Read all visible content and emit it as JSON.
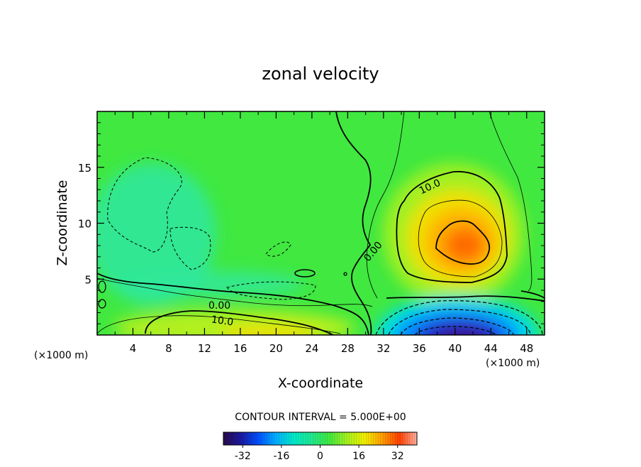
{
  "chart_data": {
    "type": "heatmap",
    "title": "zonal velocity",
    "xlabel": "X-coordinate",
    "ylabel": "Z-coordinate",
    "x_unit": "(×1000 m)",
    "x_unit_right": "(×1000 m)",
    "xlim": [
      0,
      50
    ],
    "ylim": [
      0,
      20
    ],
    "x_ticks": [
      4,
      8,
      12,
      16,
      20,
      24,
      28,
      32,
      36,
      40,
      44,
      48
    ],
    "y_ticks": [
      5,
      10,
      15
    ],
    "contour_interval_label": "CONTOUR INTERVAL = 5.000E+00",
    "contour_labels": [
      "10.0",
      "0.00",
      "0.00",
      "10.0"
    ],
    "colorbar": {
      "range": [
        -40,
        40
      ],
      "ticks": [
        -32,
        -16,
        0,
        16,
        32
      ],
      "colors": [
        "#2a0a4a",
        "#1a1aa0",
        "#0050ff",
        "#00b0ff",
        "#00e8c8",
        "#20e890",
        "#40e840",
        "#a0f020",
        "#f0f000",
        "#ffa000",
        "#ff4000",
        "#ffb0a0"
      ]
    },
    "features": [
      {
        "x": 39.5,
        "z": 8.5,
        "peak": 25
      },
      {
        "x": 40,
        "z": 0.5,
        "peak": -35
      },
      {
        "x": 20,
        "z": 0.5,
        "peak": 14
      },
      {
        "x": 7,
        "z": 9,
        "peak": -4
      },
      {
        "x": 14,
        "z": 4,
        "peak": -3
      }
    ]
  }
}
